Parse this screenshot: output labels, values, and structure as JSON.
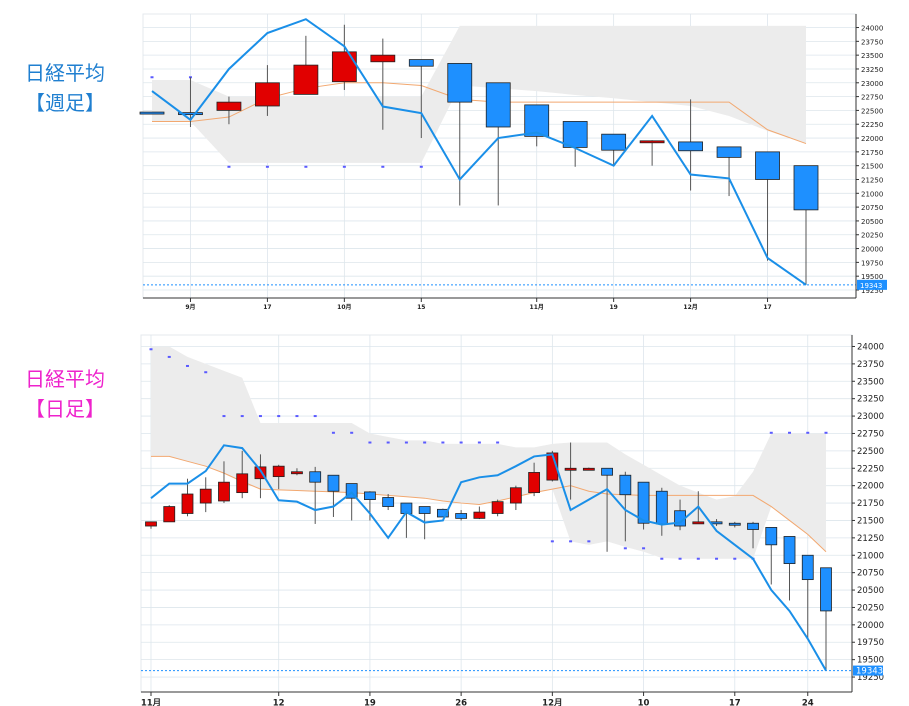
{
  "colors": {
    "up": "#e10000",
    "down": "#1e90ff",
    "ma": "#1a8fe8",
    "envelope": "#f2a870",
    "cloud": "#ececec",
    "dot": "#5a5aff",
    "grid": "#dde6ec",
    "axis": "#333333",
    "last_price": "#1e90ff",
    "weekly_title": "#1f7fd0",
    "daily_title": "#ee22cc"
  },
  "weekly": {
    "title_line1": "日経平均",
    "title_line2": "【週足】",
    "chart_data": {
      "type": "candlestick",
      "ylim": [
        19250,
        24100
      ],
      "yticks": [
        24000,
        23750,
        23500,
        23250,
        23000,
        22750,
        22500,
        22250,
        22000,
        21750,
        21500,
        21250,
        21000,
        20750,
        20500,
        20250,
        20000,
        19750,
        19500,
        19250
      ],
      "xticks": [
        {
          "label": "9月",
          "index": 1
        },
        {
          "label": "17",
          "index": 3
        },
        {
          "label": "10月",
          "index": 5
        },
        {
          "label": "15",
          "index": 7
        },
        {
          "label": "11月",
          "index": 10
        },
        {
          "label": "19",
          "index": 12
        },
        {
          "label": "12月",
          "index": 14
        },
        {
          "label": "17",
          "index": 16
        }
      ],
      "last_price": 19343,
      "candles": [
        {
          "o": 22470,
          "h": 22470,
          "l": 22440,
          "c": 22450
        },
        {
          "o": 22460,
          "h": 23100,
          "l": 22200,
          "c": 22450
        },
        {
          "o": 22500,
          "h": 22750,
          "l": 22250,
          "c": 22650
        },
        {
          "o": 22580,
          "h": 23320,
          "l": 22400,
          "c": 23000
        },
        {
          "o": 22790,
          "h": 23850,
          "l": 22790,
          "c": 23320
        },
        {
          "o": 23020,
          "h": 24050,
          "l": 22870,
          "c": 23560
        },
        {
          "o": 23380,
          "h": 23800,
          "l": 22150,
          "c": 23500
        },
        {
          "o": 23420,
          "h": 23420,
          "l": 22000,
          "c": 23300
        },
        {
          "o": 23350,
          "h": 23350,
          "l": 20780,
          "c": 22650
        },
        {
          "o": 23000,
          "h": 23000,
          "l": 20780,
          "c": 22200
        },
        {
          "o": 22600,
          "h": 22600,
          "l": 21850,
          "c": 22030
        },
        {
          "o": 22300,
          "h": 22300,
          "l": 21480,
          "c": 21830
        },
        {
          "o": 22070,
          "h": 22070,
          "l": 21500,
          "c": 21780
        },
        {
          "o": 21930,
          "h": 21960,
          "l": 21500,
          "c": 21950
        },
        {
          "o": 21930,
          "h": 22700,
          "l": 21050,
          "c": 21770
        },
        {
          "o": 21840,
          "h": 21840,
          "l": 20950,
          "c": 21650
        },
        {
          "o": 21750,
          "h": 21750,
          "l": 19780,
          "c": 21250
        },
        {
          "o": 21500,
          "h": 21500,
          "l": 19343,
          "c": 20700
        }
      ],
      "ma": [
        22850,
        22330,
        23250,
        23900,
        24150,
        23660,
        22570,
        22450,
        21250,
        22000,
        22100,
        21820,
        21500,
        22400,
        21340,
        21270,
        19830,
        19343
      ],
      "envelope": [
        22300,
        22300,
        22380,
        22720,
        22900,
        23000,
        23000,
        22950,
        22700,
        22650,
        22650,
        22650,
        22650,
        22650,
        22650,
        22650,
        22150,
        21900
      ],
      "cloud_top": [
        23050,
        23050,
        22750,
        22750,
        22750,
        22750,
        22750,
        22750,
        24030,
        24030,
        24030,
        24030,
        24030,
        24030,
        24030,
        24030,
        24030,
        24030
      ],
      "cloud_bottom": [
        22300,
        22300,
        21550,
        21550,
        21550,
        21550,
        21550,
        21550,
        22950,
        22900,
        22850,
        22780,
        22720,
        22650,
        22580,
        22400,
        22130,
        21900
      ],
      "dots": [
        {
          "i": 0,
          "v": 23100
        },
        {
          "i": 1,
          "v": 23100
        },
        {
          "i": 2,
          "v": 21480
        },
        {
          "i": 3,
          "v": 21480
        },
        {
          "i": 4,
          "v": 21480
        },
        {
          "i": 5,
          "v": 21480
        },
        {
          "i": 6,
          "v": 21480
        },
        {
          "i": 7,
          "v": 21480
        }
      ]
    }
  },
  "daily": {
    "title_line1": "日経平均",
    "title_line2": "【日足】",
    "chart_data": {
      "type": "candlestick",
      "ylim": [
        19150,
        24050
      ],
      "yticks": [
        24000,
        23750,
        23500,
        23250,
        23000,
        22750,
        22500,
        22250,
        22000,
        21750,
        21500,
        21250,
        21000,
        20750,
        20500,
        20250,
        20000,
        19750,
        19500,
        19250
      ],
      "xticks": [
        {
          "label": "11月",
          "index": 0
        },
        {
          "label": "12",
          "index": 7
        },
        {
          "label": "19",
          "index": 12
        },
        {
          "label": "26",
          "index": 17
        },
        {
          "label": "12月",
          "index": 22
        },
        {
          "label": "10",
          "index": 27
        },
        {
          "label": "17",
          "index": 32
        },
        {
          "label": "24",
          "index": 36
        }
      ],
      "last_price": 19343,
      "candles": [
        {
          "o": 21420,
          "h": 21480,
          "l": 21380,
          "c": 21480
        },
        {
          "o": 21480,
          "h": 21720,
          "l": 21480,
          "c": 21700
        },
        {
          "o": 21600,
          "h": 22100,
          "l": 21560,
          "c": 21880
        },
        {
          "o": 21750,
          "h": 22120,
          "l": 21620,
          "c": 21950
        },
        {
          "o": 21780,
          "h": 22350,
          "l": 21750,
          "c": 22050
        },
        {
          "o": 21900,
          "h": 22500,
          "l": 21820,
          "c": 22170
        },
        {
          "o": 22100,
          "h": 22450,
          "l": 21820,
          "c": 22270
        },
        {
          "o": 22130,
          "h": 22300,
          "l": 21950,
          "c": 22280
        },
        {
          "o": 22200,
          "h": 22250,
          "l": 22150,
          "c": 22200
        },
        {
          "o": 22200,
          "h": 22270,
          "l": 21450,
          "c": 22050
        },
        {
          "o": 22150,
          "h": 22150,
          "l": 21550,
          "c": 21920
        },
        {
          "o": 22030,
          "h": 22030,
          "l": 21500,
          "c": 21820
        },
        {
          "o": 21910,
          "h": 21920,
          "l": 21500,
          "c": 21800
        },
        {
          "o": 21830,
          "h": 21880,
          "l": 21650,
          "c": 21700
        },
        {
          "o": 21750,
          "h": 21750,
          "l": 21250,
          "c": 21600
        },
        {
          "o": 21700,
          "h": 21700,
          "l": 21230,
          "c": 21600
        },
        {
          "o": 21660,
          "h": 21670,
          "l": 21550,
          "c": 21550
        },
        {
          "o": 21600,
          "h": 21650,
          "l": 21500,
          "c": 21530
        },
        {
          "o": 21530,
          "h": 21700,
          "l": 21520,
          "c": 21620
        },
        {
          "o": 21600,
          "h": 21800,
          "l": 21560,
          "c": 21770
        },
        {
          "o": 21750,
          "h": 22000,
          "l": 21650,
          "c": 21970
        },
        {
          "o": 21900,
          "h": 22330,
          "l": 21850,
          "c": 22190
        },
        {
          "o": 22080,
          "h": 22500,
          "l": 22060,
          "c": 22470
        },
        {
          "o": 22250,
          "h": 22620,
          "l": 21800,
          "c": 22250
        },
        {
          "o": 22250,
          "h": 22260,
          "l": 22230,
          "c": 22250
        },
        {
          "o": 22250,
          "h": 22250,
          "l": 21050,
          "c": 22150
        },
        {
          "o": 22150,
          "h": 22200,
          "l": 21200,
          "c": 21870
        },
        {
          "o": 22050,
          "h": 22050,
          "l": 21370,
          "c": 21460
        },
        {
          "o": 21920,
          "h": 21970,
          "l": 21280,
          "c": 21450
        },
        {
          "o": 21640,
          "h": 21800,
          "l": 21360,
          "c": 21420
        },
        {
          "o": 21480,
          "h": 21920,
          "l": 21460,
          "c": 21480
        },
        {
          "o": 21480,
          "h": 21520,
          "l": 21420,
          "c": 21460
        },
        {
          "o": 21460,
          "h": 21480,
          "l": 21400,
          "c": 21450
        },
        {
          "o": 21460,
          "h": 21480,
          "l": 21100,
          "c": 21370
        },
        {
          "o": 21400,
          "h": 21400,
          "l": 20580,
          "c": 21150
        },
        {
          "o": 21270,
          "h": 21270,
          "l": 20350,
          "c": 20880
        },
        {
          "o": 21000,
          "h": 21000,
          "l": 19800,
          "c": 20650
        },
        {
          "o": 20820,
          "h": 20820,
          "l": 19343,
          "c": 20200
        }
      ],
      "ma": [
        21820,
        22030,
        22030,
        22210,
        22580,
        22540,
        22220,
        21790,
        21770,
        21650,
        21700,
        21900,
        21600,
        21250,
        21620,
        21470,
        21500,
        22050,
        22120,
        22150,
        22280,
        22420,
        22450,
        21650,
        21800,
        21950,
        21650,
        21500,
        21440,
        21470,
        21700,
        21350,
        21150,
        20950,
        20500,
        20200,
        19800,
        19343
      ],
      "envelope": [
        22420,
        22420,
        22350,
        22280,
        22180,
        22060,
        21950,
        21940,
        21930,
        21920,
        21910,
        21900,
        21880,
        21860,
        21840,
        21820,
        21780,
        21750,
        21730,
        21780,
        21840,
        21900,
        21950,
        22000,
        21920,
        21880,
        21870,
        21860,
        21860,
        21860,
        21860,
        21860,
        21860,
        21860,
        21700,
        21500,
        21300,
        21050
      ],
      "cloud_top": [
        24000,
        24000,
        23850,
        23750,
        23650,
        23550,
        22900,
        22900,
        22900,
        22900,
        22900,
        22900,
        22750,
        22700,
        22650,
        22650,
        22600,
        22600,
        22600,
        22600,
        22550,
        22550,
        22600,
        22620,
        22620,
        22620,
        22450,
        22300,
        22150,
        22000,
        21900,
        21800,
        21850,
        22200,
        22750,
        22750,
        22750,
        22750
      ],
      "cloud_bottom": [
        22420,
        22420,
        22350,
        22280,
        22180,
        22060,
        21950,
        21940,
        21930,
        21920,
        21910,
        21900,
        21880,
        21860,
        21840,
        21820,
        21780,
        21750,
        21730,
        21780,
        21840,
        21900,
        21950,
        21200,
        21150,
        21200,
        21120,
        21050,
        20960,
        20950,
        20950,
        20950,
        20950,
        20950,
        21700,
        21500,
        21300,
        21050
      ],
      "dots": [
        {
          "i": 0,
          "v": 23960
        },
        {
          "i": 1,
          "v": 23850
        },
        {
          "i": 2,
          "v": 23720
        },
        {
          "i": 3,
          "v": 23630
        },
        {
          "i": 4,
          "v": 23000
        },
        {
          "i": 5,
          "v": 23000
        },
        {
          "i": 6,
          "v": 23000
        },
        {
          "i": 7,
          "v": 23000
        },
        {
          "i": 8,
          "v": 23000
        },
        {
          "i": 9,
          "v": 23000
        },
        {
          "i": 10,
          "v": 22760
        },
        {
          "i": 11,
          "v": 22760
        },
        {
          "i": 12,
          "v": 22620
        },
        {
          "i": 13,
          "v": 22620
        },
        {
          "i": 14,
          "v": 22620
        },
        {
          "i": 15,
          "v": 22620
        },
        {
          "i": 16,
          "v": 22620
        },
        {
          "i": 17,
          "v": 22620
        },
        {
          "i": 18,
          "v": 22620
        },
        {
          "i": 19,
          "v": 22620
        },
        {
          "i": 22,
          "v": 21200
        },
        {
          "i": 23,
          "v": 21200
        },
        {
          "i": 24,
          "v": 21200
        },
        {
          "i": 26,
          "v": 21100
        },
        {
          "i": 27,
          "v": 21100
        },
        {
          "i": 28,
          "v": 20950
        },
        {
          "i": 29,
          "v": 20950
        },
        {
          "i": 30,
          "v": 20950
        },
        {
          "i": 31,
          "v": 20950
        },
        {
          "i": 32,
          "v": 20950
        },
        {
          "i": 33,
          "v": 20950
        },
        {
          "i": 34,
          "v": 22760
        },
        {
          "i": 35,
          "v": 22760
        },
        {
          "i": 36,
          "v": 22760
        },
        {
          "i": 37,
          "v": 22760
        }
      ]
    }
  }
}
